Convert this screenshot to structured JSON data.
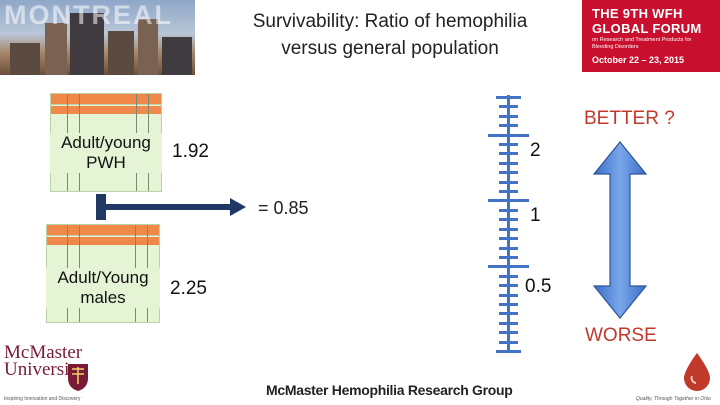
{
  "header": {
    "banner_word": "MONTREAL",
    "title_line1": "Survivability: Ratio of hemophilia",
    "title_line2": "versus general population",
    "forum": {
      "line1": "THE 9TH WFH",
      "line2": "GLOBAL FORUM",
      "subtitle": "on Research and Treatment Products for Bleeding Disorders",
      "dates": "October 22 – 23, 2015"
    }
  },
  "comparison": {
    "top": {
      "label_line1": "Adult/young",
      "label_line2": "PWH",
      "value": "1.92"
    },
    "bottom": {
      "label_line1": "Adult/Young",
      "label_line2": "males",
      "value": "2.25"
    },
    "ratio": "= 0.85"
  },
  "scale": {
    "labels": {
      "high": "2",
      "mid": "1",
      "low": "0.5"
    },
    "better": "BETTER ?",
    "worse": "WORSE"
  },
  "colors": {
    "accent_blue": "#4472c4",
    "arrow_navy": "#1f3864",
    "warning_red": "#c0392b",
    "table_header": "#f0884a",
    "table_fill": "#e6f4d6"
  },
  "footer": {
    "university_line1": "McMaster",
    "university_line2": "University",
    "university_tagline": "Inspiring Innovation and Discovery",
    "group": "McMaster Hemophilia Research Group",
    "drop_tagline": "Quality, Through Together in Ohio"
  }
}
